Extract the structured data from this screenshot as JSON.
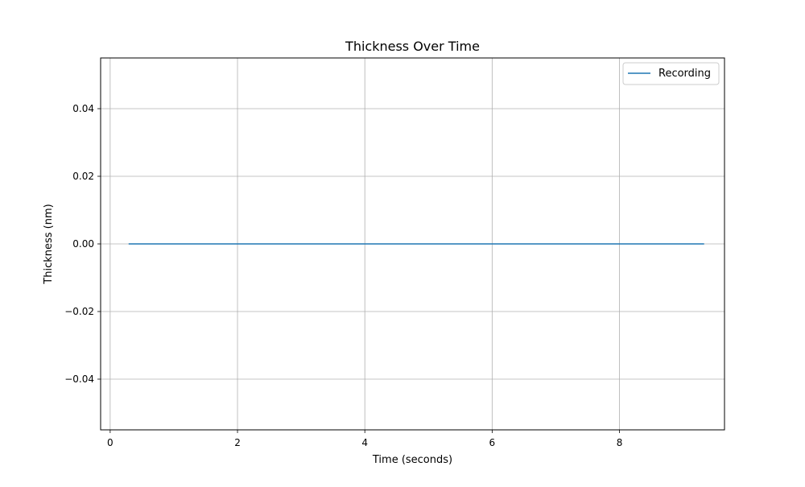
{
  "chart_data": {
    "type": "line",
    "title": "Thickness Over Time",
    "xlabel": "Time (seconds)",
    "ylabel": "Thickness (nm)",
    "xlim": [
      -0.15,
      9.65
    ],
    "ylim": [
      -0.055,
      0.055
    ],
    "xticks": [
      0,
      2,
      4,
      6,
      8
    ],
    "xtick_labels": [
      "0",
      "2",
      "4",
      "6",
      "8"
    ],
    "yticks": [
      0.04,
      0.02,
      0.0,
      -0.02,
      -0.04
    ],
    "ytick_labels": [
      "0.04",
      "0.02",
      "0.00",
      "−0.02",
      "−0.04"
    ],
    "grid": true,
    "legend_position": "top-right",
    "series": [
      {
        "name": "Recording",
        "color": "#1f77b4",
        "x": [
          0.29,
          9.33
        ],
        "y": [
          0.0,
          0.0
        ]
      }
    ]
  }
}
